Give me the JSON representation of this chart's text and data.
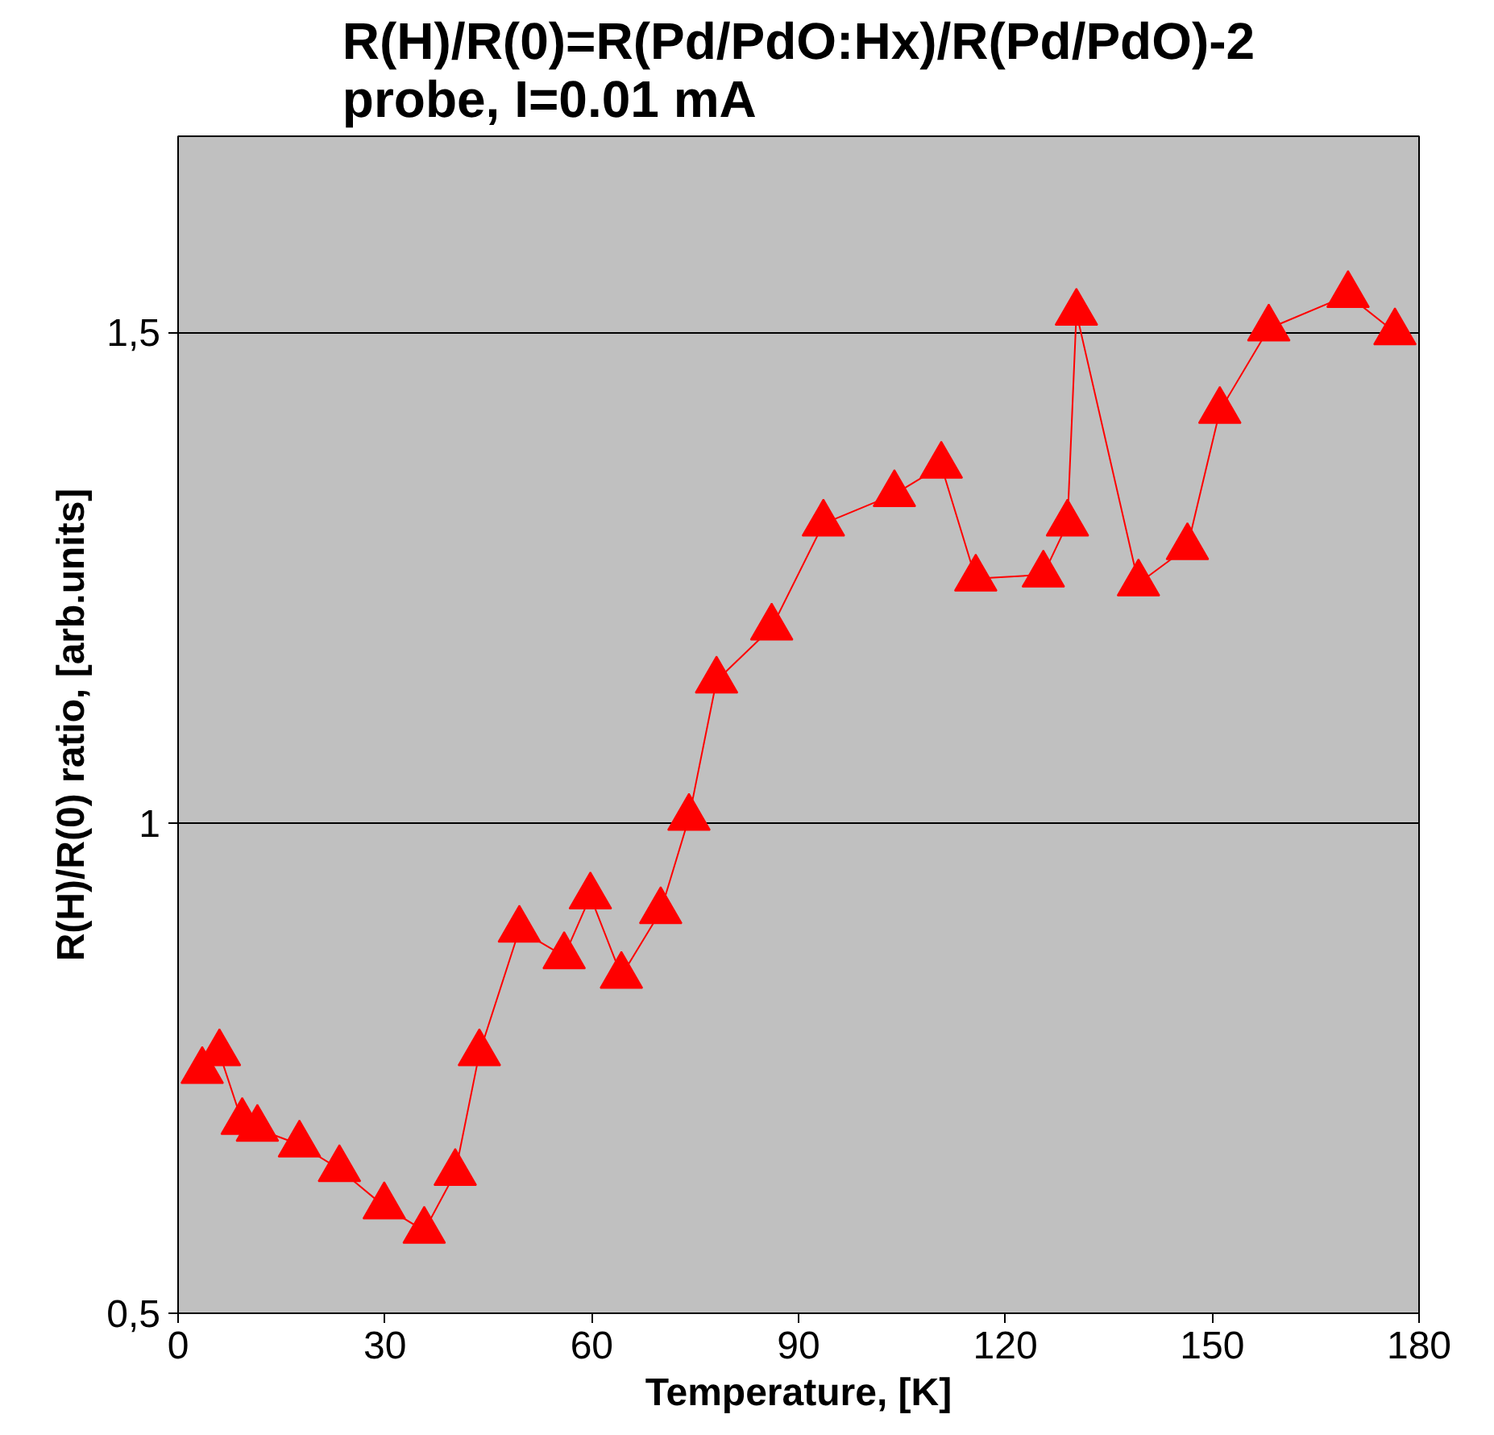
{
  "chart_data": {
    "type": "line",
    "title": "R(H)/R(0)=R(Pd/PdO:Hx)/R(Pd/PdO)-2\nprobe, I=0.01 mA",
    "xlabel": "Temperature, [K]",
    "ylabel": "R(H)/R(0) ratio, [arb.units]",
    "xlim": [
      0,
      180
    ],
    "xticks": [
      0,
      30,
      60,
      90,
      120,
      150,
      180
    ],
    "ylim": [
      0.5,
      1.7
    ],
    "yticks": [
      {
        "value": 0.5,
        "label": "0,5"
      },
      1,
      {
        "value": 1.5,
        "label": "1,5"
      }
    ],
    "grid": "y",
    "marker": "triangle",
    "line_style": "solid",
    "series": [
      {
        "color": "#ff0000",
        "x": [
          3.5,
          6.0,
          9.3,
          11.5,
          17.6,
          23.4,
          29.9,
          35.7,
          40.2,
          43.7,
          49.5,
          56.0,
          59.8,
          64.3,
          70.0,
          74.1,
          78.1,
          86.1,
          93.6,
          103.9,
          110.7,
          115.7,
          125.5,
          129.0,
          130.3,
          139.3,
          146.4,
          151.1,
          158.2,
          169.7,
          176.5
        ],
        "values": [
          0.747,
          0.765,
          0.695,
          0.688,
          0.672,
          0.647,
          0.609,
          0.584,
          0.643,
          0.765,
          0.891,
          0.864,
          0.925,
          0.844,
          0.91,
          1.005,
          1.145,
          1.199,
          1.305,
          1.335,
          1.364,
          1.249,
          1.253,
          1.305,
          1.52,
          1.244,
          1.281,
          1.42,
          1.504,
          1.538,
          1.5
        ]
      }
    ]
  }
}
